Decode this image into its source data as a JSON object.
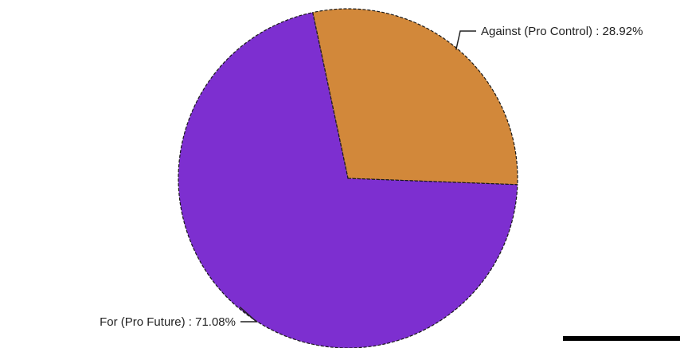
{
  "chart_data": {
    "type": "pie",
    "slices": [
      {
        "name": "Against (Pro Control)",
        "value": 28.92,
        "label": "Against (Pro Control) : 28.92%",
        "color": "#d2883a"
      },
      {
        "name": "For (Pro Future)",
        "value": 71.08,
        "label": "For (Pro Future) : 71.08%",
        "color": "#7d2fd0"
      }
    ],
    "start_angle_deg": -12,
    "direction": "clockwise"
  }
}
